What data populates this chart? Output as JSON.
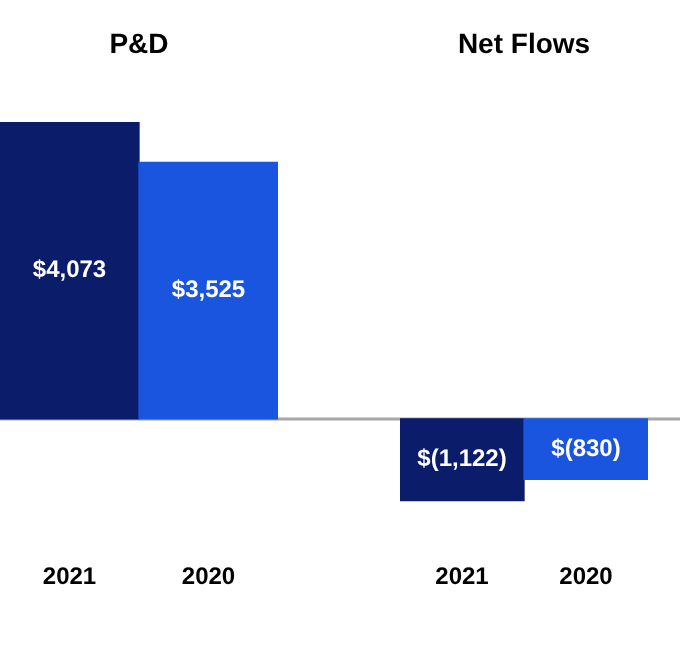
{
  "chart_data": [
    {
      "type": "bar",
      "title": "P&D",
      "categories": [
        "2021",
        "2020"
      ],
      "values": [
        4073,
        3525
      ],
      "colors": [
        "#0b1c6b",
        "#1a55e0"
      ],
      "value_labels": [
        "$4,073",
        "$3,525"
      ],
      "tick_labels": "x",
      "ref_lines": [
        {
          "axis": "y",
          "value": 0,
          "color": "#a6a6a6"
        }
      ]
    },
    {
      "type": "bar",
      "title": "Net Flows",
      "categories": [
        "2021",
        "2020"
      ],
      "values": [
        -1122,
        -830
      ],
      "colors": [
        "#0b1c6b",
        "#1a55e0"
      ],
      "value_labels": [
        "$(1,122)",
        "$(830)"
      ],
      "tick_labels": "x",
      "ref_lines": [
        {
          "axis": "y",
          "value": 0,
          "color": "#a6a6a6"
        }
      ]
    }
  ]
}
